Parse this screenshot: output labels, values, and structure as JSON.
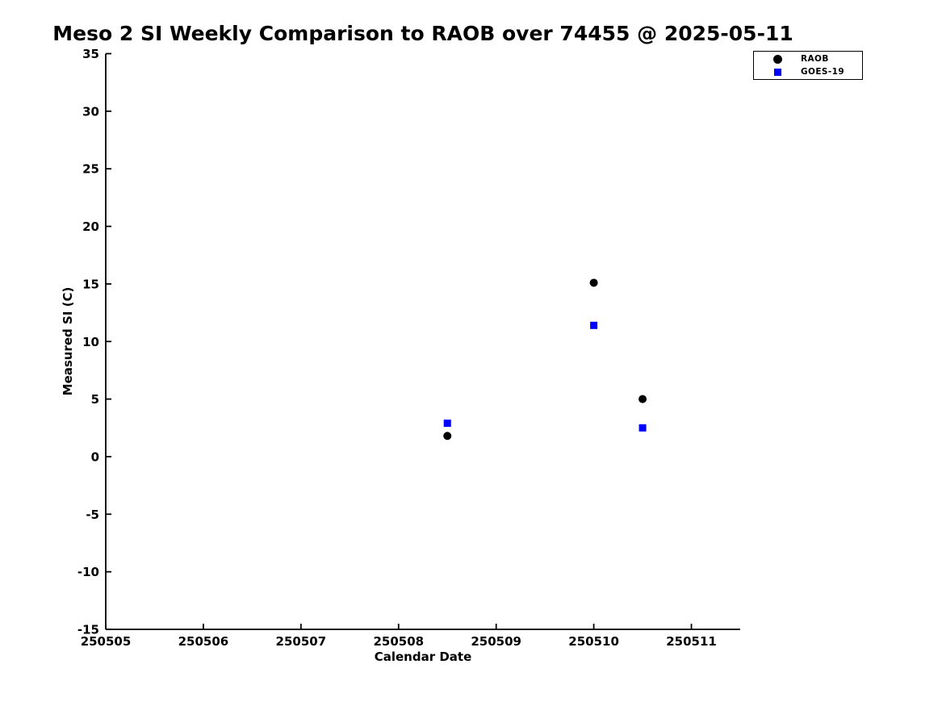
{
  "chart_data": {
    "type": "scatter",
    "title": "Meso 2 SI Weekly Comparison to RAOB over 74455 @ 2025-05-11",
    "xlabel": "Calendar Date",
    "ylabel": "Measured SI (C)",
    "xlim": [
      250505,
      250511.5
    ],
    "ylim": [
      -15,
      35
    ],
    "x_tick_values": [
      250505,
      250506,
      250507,
      250508,
      250509,
      250510,
      250511
    ],
    "x_tick_labels": [
      "250505",
      "250506",
      "250507",
      "250508",
      "250509",
      "250510",
      "250511"
    ],
    "y_tick_values": [
      -15,
      -10,
      -5,
      0,
      5,
      10,
      15,
      20,
      25,
      30,
      35
    ],
    "grid": false,
    "legend_position": "top-right",
    "axis_color": "#000000",
    "series": [
      {
        "name": "RAOB",
        "marker": "circle",
        "color": "#000000",
        "x": [
          250508.5,
          250510.0,
          250510.5
        ],
        "y": [
          1.8,
          15.1,
          5.0
        ]
      },
      {
        "name": "GOES-19",
        "marker": "square",
        "color": "#0000ff",
        "x": [
          250508.5,
          250510.0,
          250510.5
        ],
        "y": [
          2.9,
          11.4,
          2.5
        ]
      }
    ]
  }
}
